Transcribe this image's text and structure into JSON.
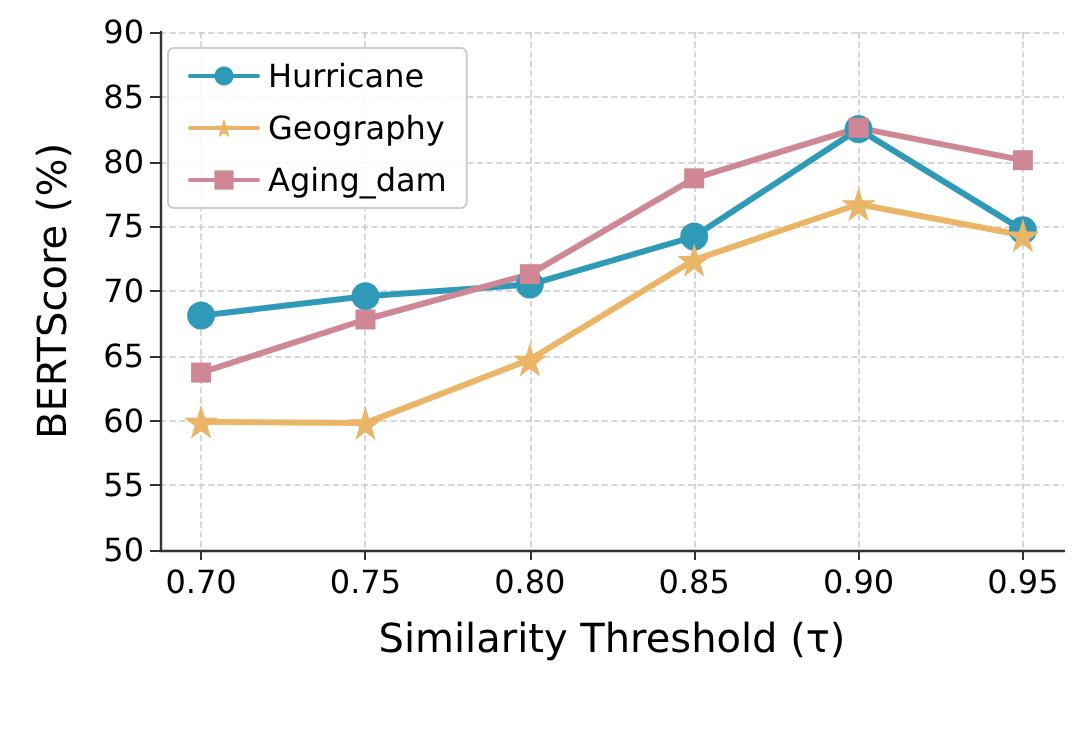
{
  "chart_data": {
    "type": "line",
    "xlabel": "Similarity Threshold (τ)",
    "ylabel": "BERTScore (%)",
    "x": [
      0.7,
      0.75,
      0.8,
      0.85,
      0.9,
      0.95
    ],
    "series": [
      {
        "name": "Hurricane",
        "color": "#2e9ab8",
        "marker": "circle",
        "values": [
          68.1,
          69.6,
          70.5,
          74.2,
          82.5,
          74.7
        ]
      },
      {
        "name": "Geography",
        "color": "#ebb567",
        "marker": "star",
        "values": [
          59.9,
          59.8,
          64.7,
          72.4,
          76.7,
          74.3
        ]
      },
      {
        "name": "Aging_dam",
        "color": "#cf8795",
        "marker": "square",
        "values": [
          63.7,
          67.8,
          71.3,
          78.7,
          82.6,
          80.1
        ]
      }
    ],
    "xlim": [
      0.6875,
      0.9625
    ],
    "xticks": [
      {
        "value": 0.7,
        "label": "0.70"
      },
      {
        "value": 0.75,
        "label": "0.75"
      },
      {
        "value": 0.8,
        "label": "0.80"
      },
      {
        "value": 0.85,
        "label": "0.85"
      },
      {
        "value": 0.9,
        "label": "0.90"
      },
      {
        "value": 0.95,
        "label": "0.95"
      }
    ],
    "ylim": [
      50,
      90
    ],
    "yticks": [
      50,
      55,
      60,
      65,
      70,
      75,
      80,
      85,
      90
    ],
    "grid": true,
    "legend": "top left",
    "line_style": "solid"
  }
}
